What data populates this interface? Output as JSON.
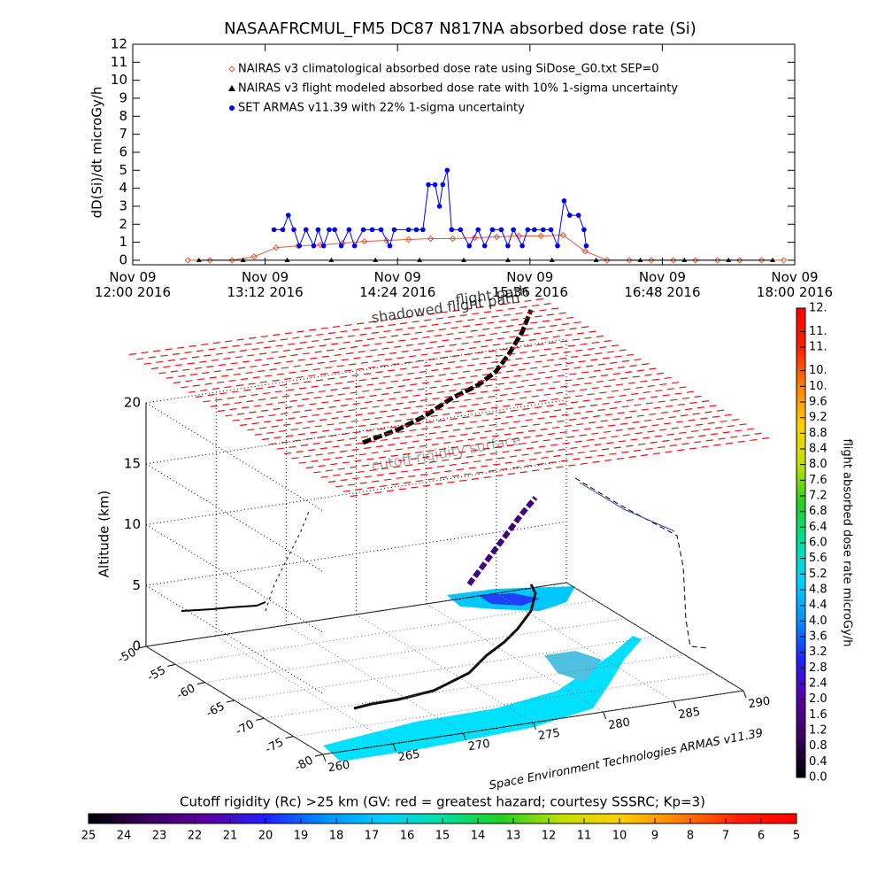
{
  "chart_data": [
    {
      "type": "line",
      "title": "NASAAFRCMUL_FM5 DC87 N817NA absorbed dose rate (Si)",
      "y_label": "dD(Si)/dt microGy/h",
      "xlim": [
        12,
        18
      ],
      "ylim": [
        -0.25,
        12
      ],
      "xticks": [
        {
          "value": 12,
          "label": "Nov 09\n12:00 2016"
        },
        {
          "value": 13.2,
          "label": "Nov 09\n13:12 2016"
        },
        {
          "value": 14.4,
          "label": "Nov 09\n14:24 2016"
        },
        {
          "value": 15.6,
          "label": "Nov 09\n15:36 2016"
        },
        {
          "value": 16.8,
          "label": "Nov 09\n16:48 2016"
        },
        {
          "value": 18,
          "label": "Nov 09\n18:00 2016"
        }
      ],
      "yticks": [
        0,
        1,
        2,
        3,
        4,
        5,
        6,
        7,
        8,
        9,
        10,
        11,
        12
      ],
      "series": [
        {
          "name": "NAIRAS v3 climatological absorbed dose rate using SiDose_G0.txt SEP=0",
          "color": "#e05a3a",
          "marker": "diamond",
          "x": [
            12.5,
            12.7,
            12.9,
            13.1,
            13.3,
            13.5,
            13.7,
            13.9,
            14.1,
            14.3,
            14.5,
            14.7,
            14.9,
            15.1,
            15.3,
            15.5,
            15.7,
            15.9,
            16.1,
            16.3,
            16.5,
            16.7,
            16.9,
            17.1,
            17.3,
            17.5,
            17.7,
            17.9
          ],
          "values": [
            0,
            0,
            0,
            0.2,
            0.7,
            0.8,
            0.85,
            0.95,
            1.05,
            1.1,
            1.15,
            1.2,
            1.2,
            1.25,
            1.3,
            1.35,
            1.35,
            1.4,
            0.5,
            0,
            0,
            0,
            0,
            0,
            0,
            0,
            0,
            0
          ]
        },
        {
          "name": "NAIRAS v3 flight modeled absorbed dose rate with 10% 1-sigma uncertainty",
          "color": "#000000",
          "marker": "triangle",
          "x": [
            12.6,
            13.0,
            13.4,
            13.8,
            14.2,
            14.6,
            15.0,
            15.4,
            15.8,
            16.2,
            16.6,
            17.0,
            17.4,
            17.8
          ],
          "values": [
            0,
            0,
            0,
            0,
            0,
            0,
            0,
            0,
            0,
            0,
            0,
            0,
            0,
            0
          ]
        },
        {
          "name": "SET ARMAS v11.39 with 22% 1-sigma uncertainty",
          "color": "#0000ff",
          "marker": "circle",
          "x": [
            13.28,
            13.36,
            13.41,
            13.46,
            13.51,
            13.57,
            13.64,
            13.68,
            13.73,
            13.78,
            13.83,
            13.89,
            13.96,
            14.01,
            14.09,
            14.17,
            14.25,
            14.33,
            14.37,
            14.5,
            14.57,
            14.63,
            14.68,
            14.74,
            14.78,
            14.81,
            14.85,
            14.89,
            14.97,
            15.05,
            15.13,
            15.19,
            15.26,
            15.34,
            15.4,
            15.45,
            15.53,
            15.58,
            15.64,
            15.72,
            15.79,
            15.85,
            15.91,
            15.96,
            16.04,
            16.09,
            16.11
          ],
          "values": [
            1.7,
            1.7,
            2.5,
            1.7,
            0.8,
            1.7,
            0.8,
            1.7,
            0.8,
            1.7,
            1.7,
            0.8,
            1.7,
            0.8,
            1.7,
            1.7,
            1.7,
            0.8,
            1.7,
            1.7,
            1.7,
            1.7,
            4.2,
            4.2,
            3.0,
            4.2,
            5.0,
            1.7,
            1.7,
            0.8,
            1.7,
            0.8,
            1.7,
            1.7,
            0.8,
            1.7,
            0.8,
            1.7,
            1.7,
            1.7,
            1.7,
            0.8,
            3.3,
            2.5,
            2.5,
            1.7,
            0.8
          ]
        }
      ]
    },
    {
      "type": "surface3d",
      "z_label": "Altitude (km)",
      "xlim": [
        260,
        290
      ],
      "xticks": [
        260,
        265,
        270,
        275,
        280,
        285,
        290
      ],
      "ylim": [
        -50,
        -80
      ],
      "yticks": [
        -50,
        -55,
        -60,
        -65,
        -70,
        -75,
        -80
      ],
      "zlim": [
        0,
        20
      ],
      "zticks": [
        0,
        5,
        10,
        15,
        20
      ],
      "annotations": [
        "shadowed flight path",
        "flight path",
        "cutoff rigidity surface"
      ],
      "credit": "Space Environment Technologies ARMAS v11.39"
    },
    {
      "type": "colorbar",
      "orientation": "vertical",
      "label": "flight absorbed dose rate microGy/h",
      "ylim": [
        0,
        12
      ],
      "yticks": [
        {
          "value": 0,
          "label": "0.0"
        },
        0.4,
        0.8,
        1.2,
        1.6,
        {
          "value": 2,
          "label": "2.0"
        },
        2.4,
        2.8,
        3.2,
        3.6,
        {
          "value": 4,
          "label": "4.0"
        },
        4.4,
        4.8,
        5.2,
        5.6,
        {
          "value": 6,
          "label": "6.0"
        },
        6.4,
        6.8,
        7.2,
        7.6,
        {
          "value": 8,
          "label": "8.0"
        },
        8.4,
        8.8,
        9.2,
        9.6,
        {
          "value": 10,
          "label": "10."
        },
        {
          "value": 10.4,
          "label": "10."
        },
        {
          "value": 11,
          "label": "11."
        },
        {
          "value": 11.4,
          "label": "11."
        },
        {
          "value": 12,
          "label": "12."
        }
      ],
      "colors": [
        "#000000",
        "#3a0060",
        "#5a00a0",
        "#2020ff",
        "#0090ff",
        "#00d0ff",
        "#00e0a0",
        "#20d020",
        "#c0e000",
        "#ffd000",
        "#ff8000",
        "#ff2000",
        "#ff0000"
      ]
    },
    {
      "type": "colorbar",
      "orientation": "horizontal",
      "title": "Cutoff rigidity (Rc) >25 km (GV: red = greatest hazard; courtesy SSSRC; Kp=3)",
      "xlim": [
        25,
        5
      ],
      "xticks": [
        25,
        24,
        23,
        22,
        21,
        20,
        19,
        18,
        17,
        16,
        15,
        14,
        13,
        12,
        11,
        10,
        9,
        8,
        7,
        6,
        5
      ],
      "colors": [
        "#000000",
        "#3a0060",
        "#5a00a0",
        "#2020ff",
        "#0090ff",
        "#00d0ff",
        "#00e0a0",
        "#20d020",
        "#c0e000",
        "#ffd000",
        "#ff8000",
        "#ff2000",
        "#ff0000"
      ]
    }
  ]
}
